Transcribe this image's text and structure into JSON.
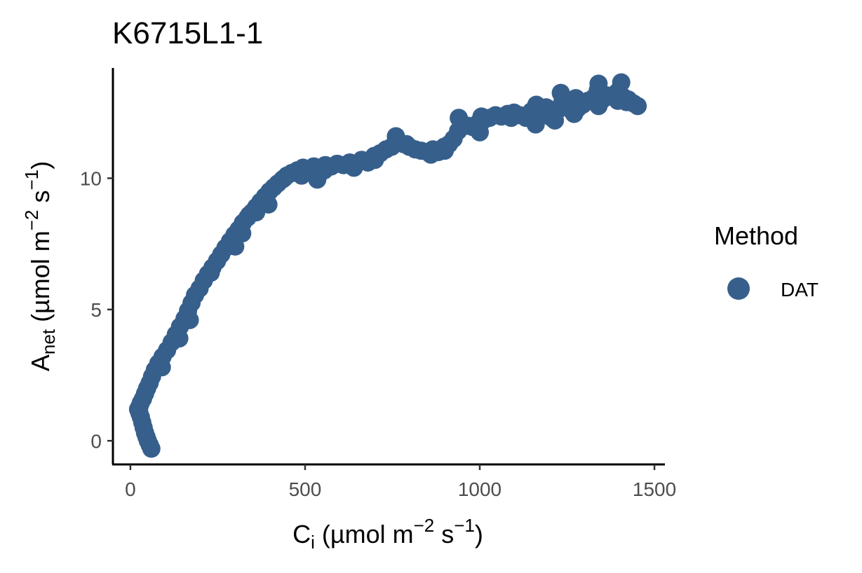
{
  "chart_data": {
    "type": "scatter",
    "title": "K6715L1-1",
    "xlabel": {
      "main": "C",
      "sub": "i",
      "unit_open": " (µmol m",
      "sup1": "−2",
      "mid": " s",
      "sup2": "−1",
      "close": ")"
    },
    "ylabel": {
      "main": "A",
      "sub": "net",
      "unit_open": " (µmol m",
      "sup1": "−2",
      "mid": " s",
      "sup2": "−1",
      "close": ")"
    },
    "xlim": [
      -50,
      1530
    ],
    "ylim": [
      -0.9,
      14.2
    ],
    "x_ticks": [
      0,
      500,
      1000,
      1500
    ],
    "x_tick_labels": [
      "0",
      "500",
      "1000",
      "1500"
    ],
    "y_ticks": [
      0,
      5,
      10
    ],
    "y_tick_labels": [
      "0",
      "5",
      "10"
    ],
    "grid": false,
    "legend": {
      "title": "Method",
      "position": "right"
    },
    "colors": {
      "DAT": "#365f8c"
    },
    "series": [
      {
        "name": "DAT",
        "color": "#365f8c",
        "points": [
          [
            60,
            -0.3
          ],
          [
            55,
            -0.15
          ],
          [
            50,
            0.0
          ],
          [
            46,
            0.15
          ],
          [
            42,
            0.3
          ],
          [
            38,
            0.5
          ],
          [
            34,
            0.7
          ],
          [
            30,
            0.9
          ],
          [
            26,
            1.05
          ],
          [
            22,
            1.2
          ],
          [
            26,
            1.3
          ],
          [
            30,
            1.45
          ],
          [
            36,
            1.6
          ],
          [
            42,
            1.8
          ],
          [
            48,
            2.0
          ],
          [
            55,
            2.2
          ],
          [
            62,
            2.45
          ],
          [
            70,
            2.7
          ],
          [
            80,
            2.95
          ],
          [
            92,
            3.2
          ],
          [
            105,
            3.45
          ],
          [
            118,
            3.75
          ],
          [
            130,
            4.05
          ],
          [
            142,
            4.35
          ],
          [
            155,
            4.65
          ],
          [
            165,
            4.95
          ],
          [
            175,
            5.25
          ],
          [
            185,
            5.55
          ],
          [
            198,
            5.8
          ],
          [
            210,
            6.1
          ],
          [
            222,
            6.35
          ],
          [
            235,
            6.6
          ],
          [
            248,
            6.85
          ],
          [
            260,
            7.1
          ],
          [
            272,
            7.35
          ],
          [
            285,
            7.6
          ],
          [
            298,
            7.85
          ],
          [
            310,
            8.05
          ],
          [
            322,
            8.3
          ],
          [
            335,
            8.5
          ],
          [
            348,
            8.7
          ],
          [
            360,
            8.9
          ],
          [
            372,
            9.1
          ],
          [
            385,
            9.3
          ],
          [
            398,
            9.5
          ],
          [
            410,
            9.65
          ],
          [
            422,
            9.8
          ],
          [
            435,
            9.95
          ],
          [
            448,
            10.1
          ],
          [
            462,
            10.2
          ],
          [
            478,
            10.3
          ],
          [
            494,
            10.4
          ],
          [
            510,
            10.35
          ],
          [
            525,
            10.45
          ],
          [
            540,
            10.4
          ],
          [
            558,
            10.5
          ],
          [
            575,
            10.45
          ],
          [
            592,
            10.55
          ],
          [
            610,
            10.5
          ],
          [
            628,
            10.6
          ],
          [
            645,
            10.55
          ],
          [
            662,
            10.7
          ],
          [
            680,
            10.6
          ],
          [
            698,
            10.85
          ],
          [
            715,
            10.95
          ],
          [
            732,
            11.1
          ],
          [
            748,
            11.2
          ],
          [
            765,
            11.4
          ],
          [
            782,
            11.3
          ],
          [
            798,
            11.2
          ],
          [
            815,
            11.1
          ],
          [
            832,
            11.05
          ],
          [
            850,
            11.0
          ],
          [
            866,
            11.1
          ],
          [
            882,
            11.0
          ],
          [
            898,
            11.2
          ],
          [
            912,
            11.3
          ],
          [
            925,
            11.5
          ],
          [
            938,
            11.8
          ],
          [
            950,
            12.05
          ],
          [
            965,
            12.0
          ],
          [
            980,
            11.95
          ],
          [
            995,
            12.1
          ],
          [
            1010,
            12.2
          ],
          [
            1028,
            12.3
          ],
          [
            1045,
            12.4
          ],
          [
            1062,
            12.35
          ],
          [
            1080,
            12.45
          ],
          [
            1098,
            12.5
          ],
          [
            1115,
            12.4
          ],
          [
            1132,
            12.3
          ],
          [
            1148,
            12.55
          ],
          [
            1162,
            12.8
          ],
          [
            1178,
            12.6
          ],
          [
            1192,
            12.4
          ],
          [
            1206,
            12.3
          ],
          [
            1220,
            12.55
          ],
          [
            1235,
            12.85
          ],
          [
            1250,
            12.7
          ],
          [
            1265,
            12.55
          ],
          [
            1280,
            12.65
          ],
          [
            1295,
            12.8
          ],
          [
            1310,
            12.95
          ],
          [
            1325,
            13.05
          ],
          [
            1338,
            13.35
          ],
          [
            1352,
            13.0
          ],
          [
            1366,
            13.15
          ],
          [
            1380,
            13.1
          ],
          [
            1395,
            13.3
          ],
          [
            1410,
            13.1
          ],
          [
            1425,
            13.0
          ],
          [
            1440,
            12.85
          ],
          [
            1452,
            12.75
          ],
          [
            90,
            2.8
          ],
          [
            140,
            3.9
          ],
          [
            170,
            4.6
          ],
          [
            230,
            6.4
          ],
          [
            300,
            7.4
          ],
          [
            320,
            7.9
          ],
          [
            340,
            8.6
          ],
          [
            360,
            8.7
          ],
          [
            395,
            9.0
          ],
          [
            440,
            10.0
          ],
          [
            490,
            10.1
          ],
          [
            535,
            9.95
          ],
          [
            555,
            10.3
          ],
          [
            640,
            10.4
          ],
          [
            700,
            10.7
          ],
          [
            760,
            11.6
          ],
          [
            790,
            11.3
          ],
          [
            860,
            10.9
          ],
          [
            900,
            11.05
          ],
          [
            940,
            12.3
          ],
          [
            1000,
            11.75
          ],
          [
            1005,
            12.35
          ],
          [
            1090,
            12.3
          ],
          [
            1160,
            12.05
          ],
          [
            1190,
            12.7
          ],
          [
            1215,
            12.2
          ],
          [
            1232,
            13.25
          ],
          [
            1270,
            12.45
          ],
          [
            1275,
            13.05
          ],
          [
            1340,
            12.75
          ],
          [
            1340,
            13.6
          ],
          [
            1395,
            12.95
          ],
          [
            1405,
            13.65
          ],
          [
            1420,
            12.9
          ]
        ]
      }
    ]
  }
}
